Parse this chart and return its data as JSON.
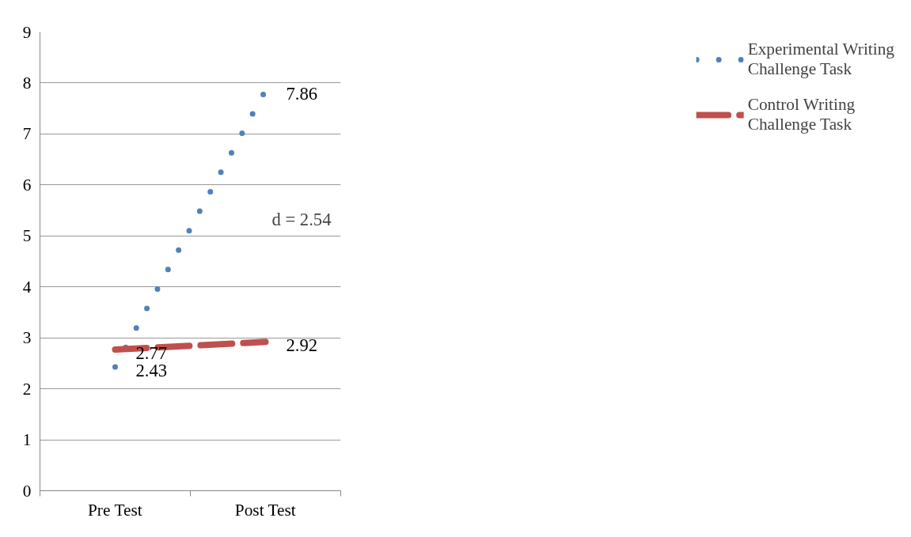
{
  "chart_data": {
    "type": "line",
    "categories": [
      "Pre Test",
      "Post Test"
    ],
    "series": [
      {
        "name": "Experimental Writing Challenge Task",
        "color": "#4f81bd",
        "values": [
          2.43,
          7.86
        ],
        "line_style": "dotted"
      },
      {
        "name": "Control Writing Challenge Task",
        "color": "#c0504d",
        "values": [
          2.77,
          2.92
        ],
        "line_style": "dashed"
      }
    ],
    "ylim": [
      0,
      9
    ],
    "yticks": [
      0,
      1,
      2,
      3,
      4,
      5,
      6,
      7,
      8,
      9
    ],
    "grid": "y",
    "legend": "right",
    "data_labels": true,
    "annotations": [
      "d = 2.54"
    ]
  }
}
